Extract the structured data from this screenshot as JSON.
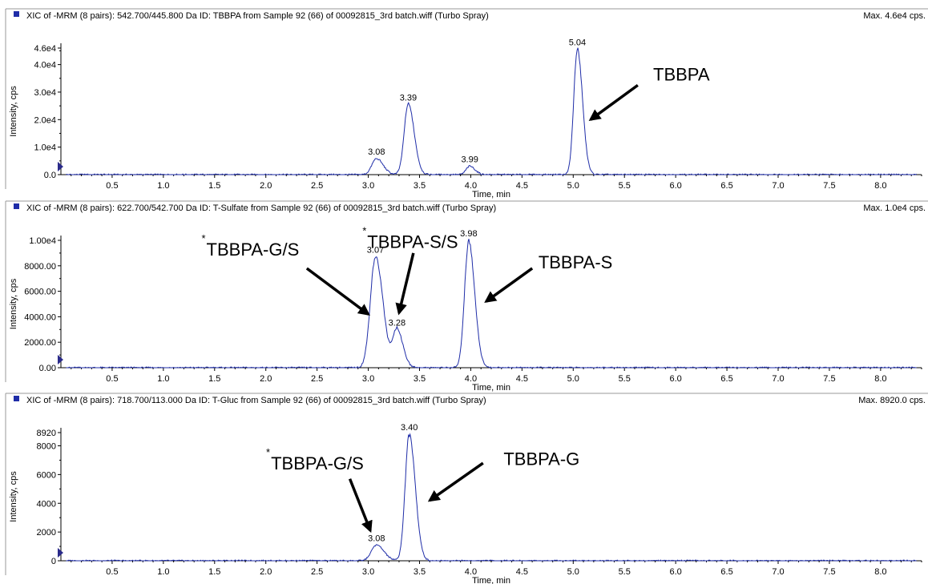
{
  "colors": {
    "trace": "#1F2DA8",
    "header_square": "#1F2DA8",
    "axis": "#000000",
    "arrow": "#000000",
    "ticks_marker": "#2A2A8A"
  },
  "chart_data": [
    {
      "type": "line",
      "header": "XIC of -MRM (8 pairs): 542.700/445.800 Da ID: TBBPA from Sample 92 (66) of 00092815_3rd batch.wiff (Turbo Spray)",
      "max_label": "Max. 4.6e4 cps.",
      "xlabel": "Time, min",
      "ylabel": "Intensity, cps",
      "xlim": [
        0,
        8.4
      ],
      "ylim": [
        0,
        46000
      ],
      "x_ticks": [
        "0.5",
        "1.0",
        "1.5",
        "2.0",
        "2.5",
        "3.0",
        "3.5",
        "4.0",
        "4.5",
        "5.0",
        "5.5",
        "6.0",
        "6.5",
        "7.0",
        "7.5",
        "8.0"
      ],
      "y_ticks": [
        {
          "label": "4.6e4",
          "value": 46000
        },
        {
          "label": "4.0e4",
          "value": 40000
        },
        {
          "label": "3.0e4",
          "value": 30000
        },
        {
          "label": "2.0e4",
          "value": 20000
        },
        {
          "label": "1.0e4",
          "value": 10000
        },
        {
          "label": "0.0",
          "value": 0
        }
      ],
      "peaks": [
        {
          "label": "3.08",
          "x": 3.08,
          "y": 5800,
          "w": 0.045
        },
        {
          "label": "3.39",
          "x": 3.39,
          "y": 25500,
          "w": 0.04
        },
        {
          "label": "3.99",
          "x": 3.99,
          "y": 3100,
          "w": 0.035
        },
        {
          "label": "5.04",
          "x": 5.04,
          "y": 45500,
          "w": 0.035
        }
      ],
      "annotations": [
        {
          "text": "TBBPA",
          "star": false,
          "text_x": 5.78,
          "text_y": 36500,
          "arrow_from": [
            5.63,
            32500
          ],
          "arrow_to": [
            5.17,
            20000
          ]
        }
      ]
    },
    {
      "type": "line",
      "header": "XIC of -MRM (8 pairs): 622.700/542.700 Da ID: T-Sulfate from Sample 92 (66) of 00092815_3rd batch.wiff (Turbo Spray)",
      "max_label": "Max. 1.0e4 cps.",
      "xlabel": "Time, min",
      "ylabel": "Intensity, cps",
      "xlim": [
        0,
        8.4
      ],
      "ylim": [
        0,
        10000
      ],
      "x_ticks": [
        "0.5",
        "1.0",
        "1.5",
        "2.0",
        "2.5",
        "3.0",
        "3.5",
        "4.0",
        "4.5",
        "5.0",
        "5.5",
        "6.0",
        "6.5",
        "7.0",
        "7.5",
        "8.0"
      ],
      "y_ticks": [
        {
          "label": "1.00e4",
          "value": 10000
        },
        {
          "label": "8000.00",
          "value": 8000
        },
        {
          "label": "6000.00",
          "value": 6000
        },
        {
          "label": "4000.00",
          "value": 4000
        },
        {
          "label": "2000.00",
          "value": 2000
        },
        {
          "label": "0.00",
          "value": 0
        }
      ],
      "peaks": [
        {
          "label": "3.07",
          "x": 3.07,
          "y": 8700,
          "w": 0.05
        },
        {
          "label": "3.28",
          "x": 3.28,
          "y": 3000,
          "w": 0.04
        },
        {
          "label": "3.98",
          "x": 3.98,
          "y": 10000,
          "w": 0.04
        }
      ],
      "annotations": [
        {
          "text": "TBBPA-G/S",
          "star": true,
          "text_x": 1.42,
          "text_y": 9300,
          "arrow_from": [
            2.4,
            7800
          ],
          "arrow_to": [
            3.0,
            4200
          ]
        },
        {
          "text": "TBBPA-S/S",
          "star": true,
          "text_x": 2.99,
          "text_y": 9900,
          "arrow_from": [
            3.44,
            9000
          ],
          "arrow_to": [
            3.3,
            4300
          ]
        },
        {
          "text": "TBBPA-S",
          "star": false,
          "text_x": 4.66,
          "text_y": 8300,
          "arrow_from": [
            4.6,
            7800
          ],
          "arrow_to": [
            4.15,
            5200
          ]
        }
      ]
    },
    {
      "type": "line",
      "header": "XIC of -MRM (8 pairs): 718.700/113.000 Da ID: T-Gluc from Sample 92 (66) of 00092815_3rd batch.wiff (Turbo Spray)",
      "max_label": "Max. 8920.0 cps.",
      "xlabel": "Time, min",
      "ylabel": "Intensity, cps",
      "xlim": [
        0,
        8.4
      ],
      "ylim": [
        0,
        8920
      ],
      "x_ticks": [
        "0.5",
        "1.0",
        "1.5",
        "2.0",
        "2.5",
        "3.0",
        "3.5",
        "4.0",
        "4.5",
        "5.0",
        "5.5",
        "6.0",
        "6.5",
        "7.0",
        "7.5",
        "8.0"
      ],
      "y_ticks": [
        {
          "label": "8920",
          "value": 8920
        },
        {
          "label": "8000",
          "value": 8000
        },
        {
          "label": "6000",
          "value": 6000
        },
        {
          "label": "4000",
          "value": 4000
        },
        {
          "label": "2000",
          "value": 2000
        },
        {
          "label": "0",
          "value": 0
        }
      ],
      "peaks": [
        {
          "label": "3.08",
          "x": 3.08,
          "y": 1100,
          "w": 0.05
        },
        {
          "label": "3.40",
          "x": 3.4,
          "y": 8800,
          "w": 0.04
        }
      ],
      "annotations": [
        {
          "text": "TBBPA-G/S",
          "star": true,
          "text_x": 2.05,
          "text_y": 6800,
          "arrow_from": [
            2.82,
            5700
          ],
          "arrow_to": [
            3.02,
            2100
          ]
        },
        {
          "text": "TBBPA-G",
          "star": false,
          "text_x": 4.32,
          "text_y": 7100,
          "arrow_from": [
            4.12,
            6800
          ],
          "arrow_to": [
            3.6,
            4200
          ]
        }
      ]
    }
  ]
}
